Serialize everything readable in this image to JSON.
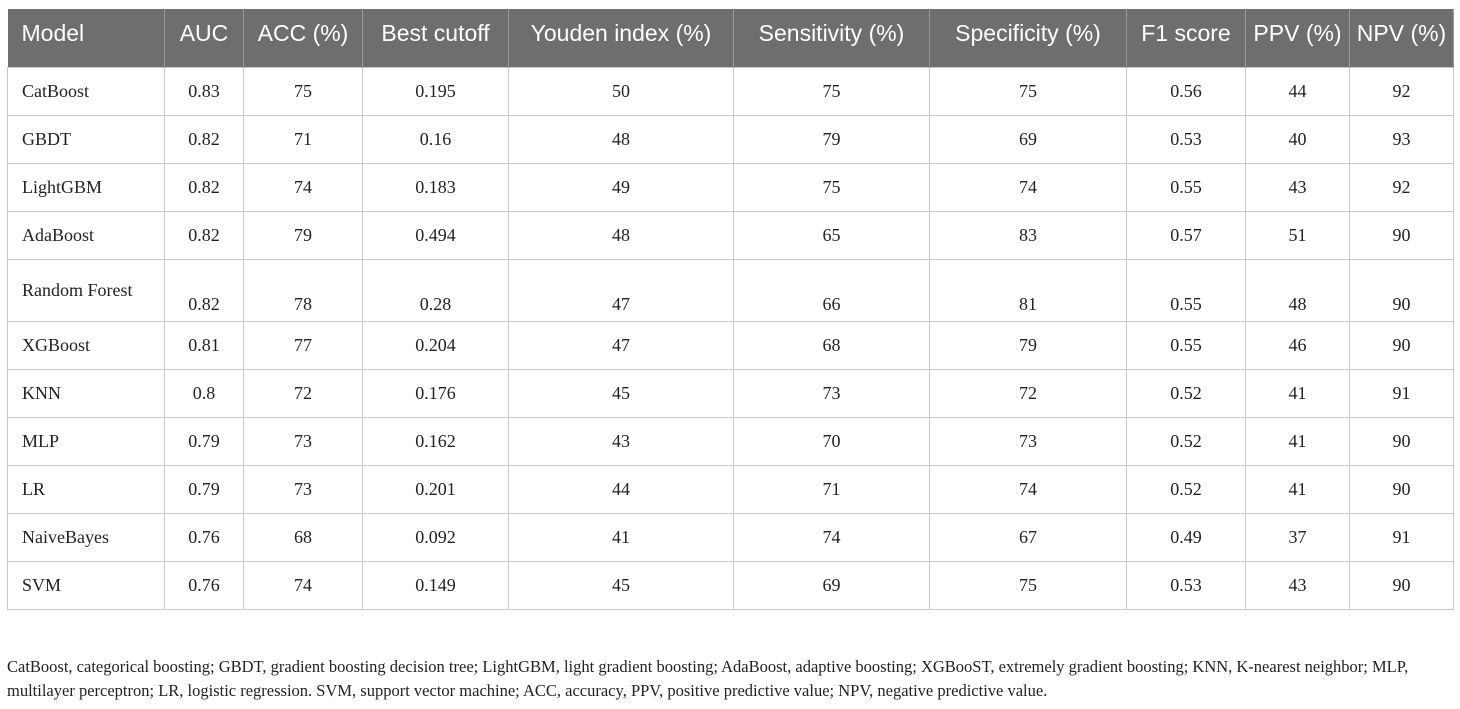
{
  "table": {
    "headers": [
      "Model",
      "AUC",
      "ACC (%)",
      "Best cutoff",
      "Youden index (%)",
      "Sensitivity (%)",
      "Specificity (%)",
      "F1 score",
      "PPV (%)",
      "NPV (%)"
    ],
    "rows": [
      [
        "CatBoost",
        "0.83",
        "75",
        "0.195",
        "50",
        "75",
        "75",
        "0.56",
        "44",
        "92"
      ],
      [
        "GBDT",
        "0.82",
        "71",
        "0.16",
        "48",
        "79",
        "69",
        "0.53",
        "40",
        "93"
      ],
      [
        "LightGBM",
        "0.82",
        "74",
        "0.183",
        "49",
        "75",
        "74",
        "0.55",
        "43",
        "92"
      ],
      [
        "AdaBoost",
        "0.82",
        "79",
        "0.494",
        "48",
        "65",
        "83",
        "0.57",
        "51",
        "90"
      ],
      [
        "Random Forest",
        "0.82",
        "78",
        "0.28",
        "47",
        "66",
        "81",
        "0.55",
        "48",
        "90"
      ],
      [
        "XGBoost",
        "0.81",
        "77",
        "0.204",
        "47",
        "68",
        "79",
        "0.55",
        "46",
        "90"
      ],
      [
        "KNN",
        "0.8",
        "72",
        "0.176",
        "45",
        "73",
        "72",
        "0.52",
        "41",
        "91"
      ],
      [
        "MLP",
        "0.79",
        "73",
        "0.162",
        "43",
        "70",
        "73",
        "0.52",
        "41",
        "90"
      ],
      [
        "LR",
        "0.79",
        "73",
        "0.201",
        "44",
        "71",
        "74",
        "0.52",
        "41",
        "90"
      ],
      [
        "NaiveBayes",
        "0.76",
        "68",
        "0.092",
        "41",
        "74",
        "67",
        "0.49",
        "37",
        "91"
      ],
      [
        "SVM",
        "0.76",
        "74",
        "0.149",
        "45",
        "69",
        "75",
        "0.53",
        "43",
        "90"
      ]
    ]
  },
  "footnote": "CatBoost, categorical boosting; GBDT, gradient boosting decision tree; LightGBM, light gradient boosting; AdaBoost, adaptive boosting; XGBooST, extremely gradient boosting; KNN, K-nearest neighbor; MLP, multilayer perceptron; LR, logistic regression. SVM, support vector machine; ACC, accuracy, PPV, positive predictive value; NPV, negative predictive value.",
  "colors": {
    "header_bg": "#6e6e6e",
    "header_text": "#ffffff",
    "grid": "#c8c8c8"
  }
}
